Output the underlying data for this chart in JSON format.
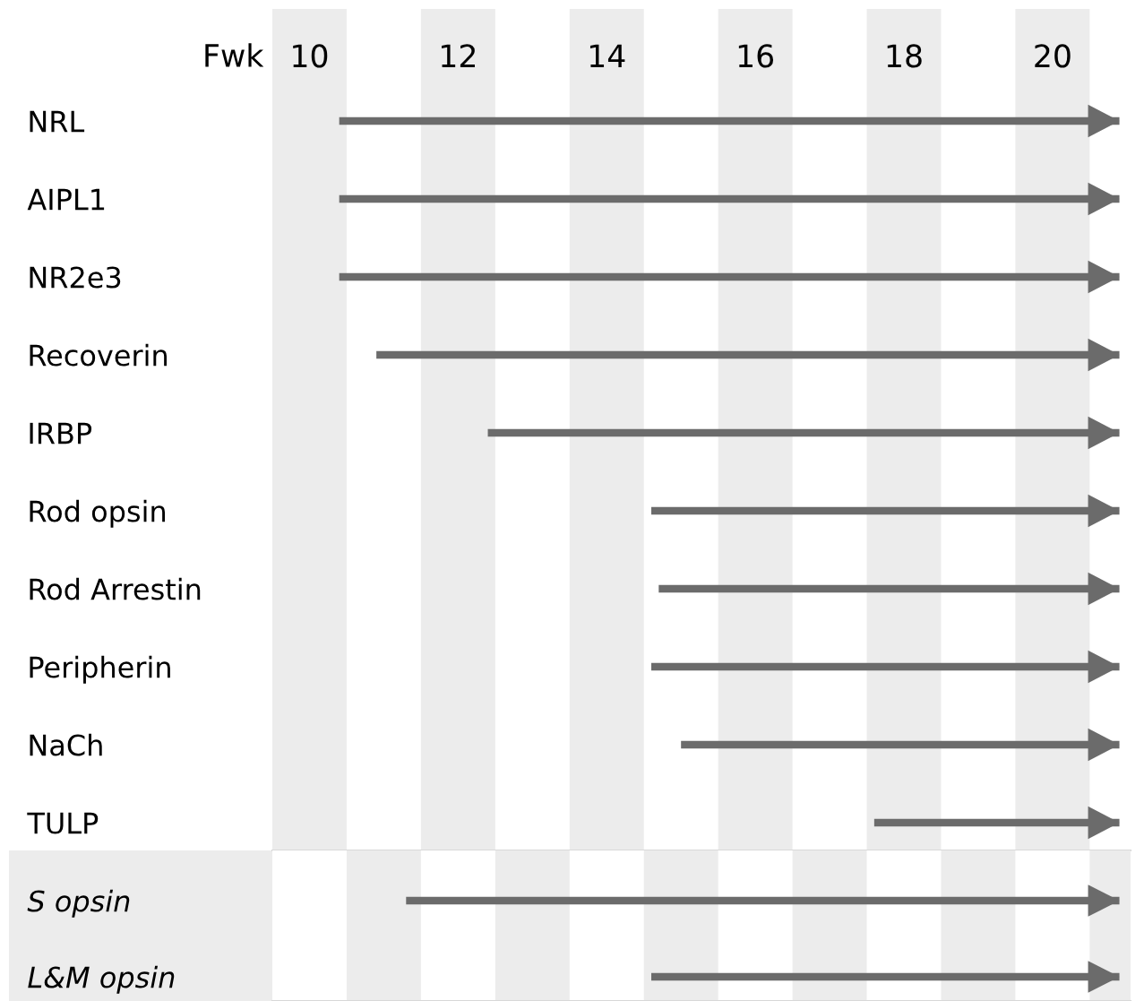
{
  "chart_data": [
    {
      "type": "bar",
      "orientation": "horizontal",
      "xlabel": "Fwk",
      "categories": [
        "NRL",
        "AIPL1",
        "NR2e3",
        "Recoverin",
        "IRBP",
        "Rod opsin",
        "Rod Arrestin",
        "Peripherin",
        "NaCh",
        "TULP"
      ],
      "base": [
        10.4,
        10.4,
        10.4,
        10.9,
        12.4,
        14.6,
        14.7,
        14.6,
        15.0,
        17.6
      ],
      "values": [
        10.5,
        10.5,
        10.5,
        10.0,
        8.5,
        6.3,
        6.2,
        6.3,
        5.9,
        3.3
      ],
      "color": "#6b6b6b",
      "xlim": [
        9.5,
        21.05
      ],
      "xticks": [
        10,
        12,
        14,
        16,
        18,
        20
      ],
      "bands": [
        {
          "axis": "x",
          "from": 9.5,
          "to": 10.5,
          "color": "#ececec"
        },
        {
          "axis": "x",
          "from": 11.5,
          "to": 12.5,
          "color": "#ececec"
        },
        {
          "axis": "x",
          "from": 13.5,
          "to": 14.5,
          "color": "#ececec"
        },
        {
          "axis": "x",
          "from": 15.5,
          "to": 16.5,
          "color": "#ececec"
        },
        {
          "axis": "x",
          "from": 17.5,
          "to": 18.5,
          "color": "#ececec"
        },
        {
          "axis": "x",
          "from": 19.5,
          "to": 20.5,
          "color": "#ececec"
        }
      ],
      "grid": false
    },
    {
      "type": "bar",
      "orientation": "horizontal",
      "categories": [
        "S opsin",
        "L&M opsin"
      ],
      "base": [
        11.3,
        14.6
      ],
      "values": [
        9.6,
        6.3
      ],
      "color": "#6b6b6b",
      "xlim": [
        9.5,
        21.05
      ],
      "tick_labels": "y",
      "bands": [
        {
          "axis": "x",
          "from": 10.5,
          "to": 11.5,
          "color": "#ececec"
        },
        {
          "axis": "x",
          "from": 12.5,
          "to": 13.5,
          "color": "#ececec"
        },
        {
          "axis": "x",
          "from": 14.5,
          "to": 15.5,
          "color": "#ececec"
        },
        {
          "axis": "x",
          "from": 16.5,
          "to": 17.5,
          "color": "#ececec"
        },
        {
          "axis": "x",
          "from": 18.5,
          "to": 19.5,
          "color": "#ececec"
        },
        {
          "axis": "x",
          "from": 20.5,
          "to": 21.05,
          "color": "#ececec"
        }
      ],
      "grid": false
    }
  ]
}
